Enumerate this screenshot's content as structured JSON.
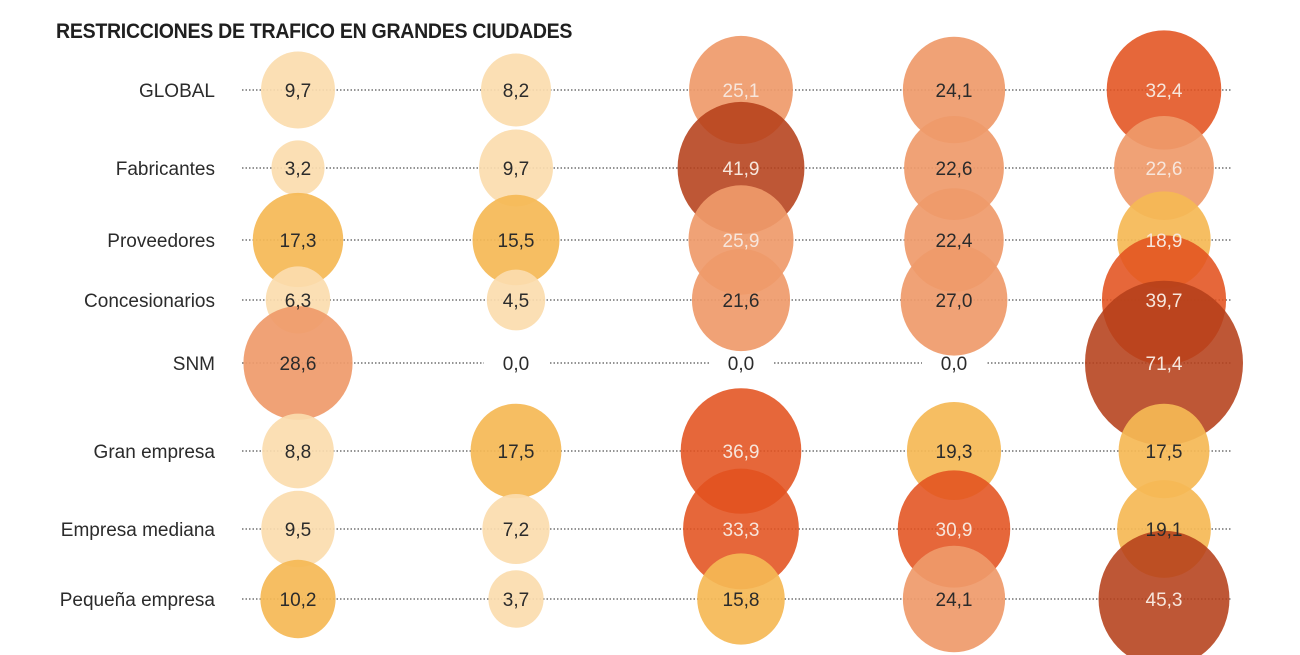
{
  "chart_data": {
    "type": "bubble-table",
    "title": "RESTRICCIONES DE TRAFICO EN GRANDES CIUDADES",
    "rows": [
      "GLOBAL",
      "Fabricantes",
      "Proveedores",
      "Concesionarios",
      "SNM",
      "Gran empresa",
      "Empresa mediana",
      "Pequeña empresa"
    ],
    "columns": [
      "",
      "",
      "",
      "",
      ""
    ],
    "values": [
      [
        "9,7",
        "8,2",
        "25,1",
        "24,1",
        "32,4"
      ],
      [
        "3,2",
        "9,7",
        "41,9",
        "22,6",
        "22,6"
      ],
      [
        "17,3",
        "15,5",
        "25,9",
        "22,4",
        "18,9"
      ],
      [
        "6,3",
        "4,5",
        "21,6",
        "27,0",
        "39,7"
      ],
      [
        "28,6",
        "0,0",
        "0,0",
        "0,0",
        "71,4"
      ],
      [
        "8,8",
        "17,5",
        "36,9",
        "19,3",
        "17,5"
      ],
      [
        "9,5",
        "7,2",
        "33,3",
        "30,9",
        "19,1"
      ],
      [
        "10,2",
        "3,7",
        "15,8",
        "24,1",
        "45,3"
      ]
    ],
    "color_scale": [
      {
        "max": 10,
        "color": "#fbdcae",
        "text": "#2b2b2b"
      },
      {
        "max": 20,
        "color": "#f5b955",
        "text": "#2b2b2b"
      },
      {
        "max": 30,
        "color": "#ef9a6a",
        "text": "#2b2b2b"
      },
      {
        "max": 40,
        "color": "#e2521f",
        "text": "#f7e6dc"
      },
      {
        "max": 100,
        "color": "#b5401a",
        "text": "#f7e6dc"
      }
    ],
    "light_text_overrides": [
      [
        0,
        2
      ],
      [
        1,
        4
      ],
      [
        2,
        2
      ],
      [
        2,
        4
      ]
    ],
    "legend": "none",
    "grid": false
  }
}
